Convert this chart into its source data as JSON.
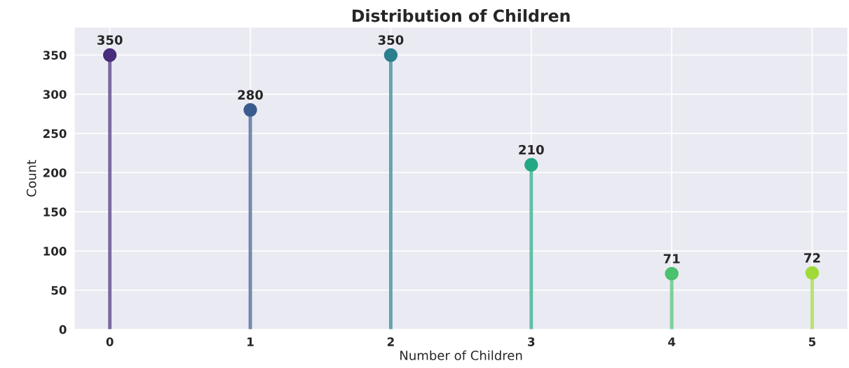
{
  "chart_data": {
    "type": "lollipop",
    "title": "Distribution of Children",
    "xlabel": "Number of Children",
    "ylabel": "Count",
    "categories": [
      "0",
      "1",
      "2",
      "3",
      "4",
      "5"
    ],
    "values": [
      350,
      280,
      350,
      210,
      71,
      72
    ],
    "colors": [
      "#472d7b",
      "#3b5b8f",
      "#2a7f8e",
      "#22a884",
      "#4ac16d",
      "#a0da39"
    ],
    "ylim": [
      0,
      385
    ],
    "yticks": [
      0,
      50,
      100,
      150,
      200,
      250,
      300,
      350
    ],
    "grid": true,
    "data_labels": true,
    "marker": "circle"
  }
}
